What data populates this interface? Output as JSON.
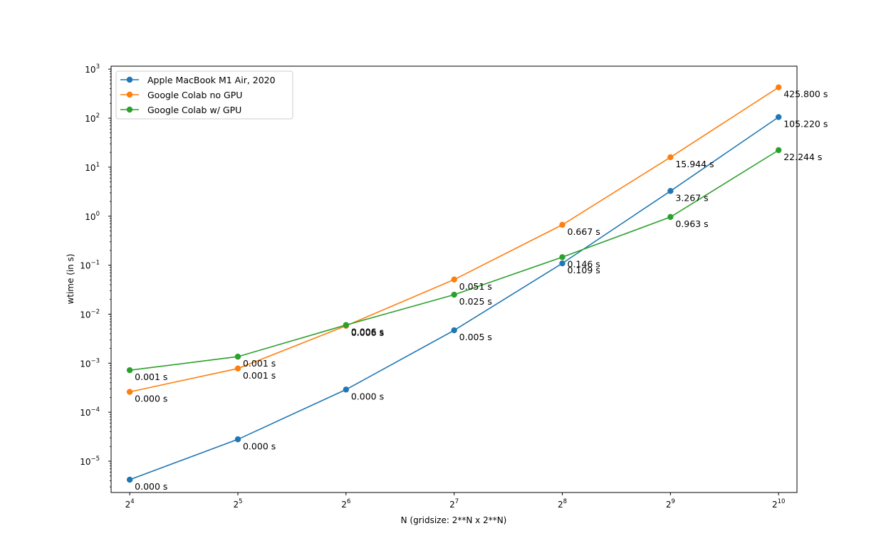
{
  "chart_data": {
    "type": "line",
    "title": "",
    "xlabel": "N (gridsize: 2**N x 2**N)",
    "ylabel": "wtime (in s)",
    "x_scale": "log2",
    "y_scale": "log10",
    "x_ticks": [
      {
        "base": "2",
        "exp": "4"
      },
      {
        "base": "2",
        "exp": "5"
      },
      {
        "base": "2",
        "exp": "6"
      },
      {
        "base": "2",
        "exp": "7"
      },
      {
        "base": "2",
        "exp": "8"
      },
      {
        "base": "2",
        "exp": "9"
      },
      {
        "base": "2",
        "exp": "10"
      }
    ],
    "y_ticks": [
      {
        "base": "10",
        "exp": "−5",
        "value": 1e-05
      },
      {
        "base": "10",
        "exp": "−4",
        "value": 0.0001
      },
      {
        "base": "10",
        "exp": "−3",
        "value": 0.001
      },
      {
        "base": "10",
        "exp": "−2",
        "value": 0.01
      },
      {
        "base": "10",
        "exp": "−1",
        "value": 0.1
      },
      {
        "base": "10",
        "exp": "0",
        "value": 1
      },
      {
        "base": "10",
        "exp": "1",
        "value": 10
      },
      {
        "base": "10",
        "exp": "2",
        "value": 100
      },
      {
        "base": "10",
        "exp": "3",
        "value": 1000
      }
    ],
    "x": [
      16,
      32,
      64,
      128,
      256,
      512,
      1024
    ],
    "xlim": [
      14.2,
      1152
    ],
    "ylim": [
      2.3e-06,
      1150
    ],
    "grid": false,
    "legend_position": "top-left",
    "series": [
      {
        "name": "Apple MacBook M1 Air, 2020",
        "color": "#1f77b4",
        "values": [
          4.2e-06,
          2.8e-05,
          0.00029,
          0.0047,
          0.109,
          3.267,
          105.22
        ],
        "labels": [
          "0.000 s",
          "0.000 s",
          "0.000 s",
          "0.005 s",
          "0.109 s",
          "3.267 s",
          "105.220 s"
        ]
      },
      {
        "name": "Google Colab no GPU",
        "color": "#ff7f0e",
        "values": [
          0.00026,
          0.00078,
          0.0058,
          0.051,
          0.667,
          15.944,
          425.8
        ],
        "labels": [
          "0.000 s",
          "0.001 s",
          "0.006 s",
          "0.051 s",
          "0.667 s",
          "15.944 s",
          "425.800 s"
        ]
      },
      {
        "name": "Google Colab w/ GPU",
        "color": "#2ca02c",
        "values": [
          0.00072,
          0.00136,
          0.006,
          0.025,
          0.146,
          0.963,
          22.244
        ],
        "labels": [
          "0.001 s",
          "0.001 s",
          "0.006 s",
          "0.025 s",
          "0.146 s",
          "0.963 s",
          "22.244 s"
        ]
      }
    ]
  }
}
